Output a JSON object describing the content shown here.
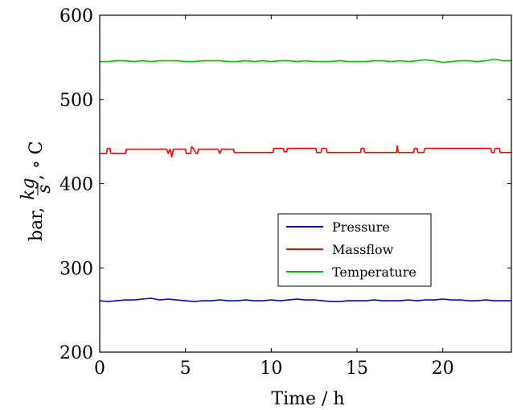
{
  "chart_data": {
    "type": "line",
    "title": "",
    "xlabel": "Time / h",
    "ylabel": {
      "prefix": "bar,",
      "frac_num": "kg",
      "frac_den": "s",
      "suffix": ", ∘ C"
    },
    "xlim": [
      0,
      24
    ],
    "ylim": [
      200,
      600
    ],
    "xticks": [
      0,
      5,
      10,
      15,
      20
    ],
    "yticks": [
      200,
      300,
      400,
      500,
      600
    ],
    "grid": false,
    "legend_position": "center-right",
    "series": [
      {
        "name": "Pressure",
        "color": "#0000ff",
        "x": [
          0,
          0.5,
          1,
          1.5,
          2,
          2.5,
          3,
          3.5,
          4,
          4.5,
          5,
          5.5,
          6,
          6.5,
          7,
          7.5,
          8,
          8.5,
          9,
          9.5,
          10,
          10.5,
          11,
          11.5,
          12,
          12.5,
          13,
          13.5,
          14,
          14.5,
          15,
          15.5,
          16,
          16.5,
          17,
          17.5,
          18,
          18.5,
          19,
          19.5,
          20,
          20.5,
          21,
          21.5,
          22,
          22.5,
          23,
          23.5,
          24
        ],
        "values": [
          261,
          260,
          261,
          262,
          262,
          263,
          264,
          262,
          263,
          262,
          261,
          260,
          261,
          261,
          262,
          261,
          261,
          262,
          261,
          261,
          262,
          261,
          262,
          263,
          262,
          262,
          261,
          260,
          260,
          261,
          261,
          261,
          262,
          261,
          261,
          261,
          262,
          261,
          262,
          262,
          263,
          262,
          262,
          261,
          261,
          262,
          261,
          261,
          261
        ]
      },
      {
        "name": "Massflow",
        "color": "#ff0000",
        "x": [
          0,
          0.4,
          0.45,
          0.6,
          0.65,
          1.5,
          1.55,
          3.9,
          4.0,
          4.1,
          4.2,
          4.3,
          4.4,
          5.0,
          5.05,
          5.3,
          5.35,
          5.5,
          5.6,
          5.7,
          5.75,
          6.9,
          7.0,
          7.1,
          7.8,
          7.85,
          10.1,
          10.15,
          10.7,
          10.75,
          10.9,
          10.95,
          12.6,
          12.65,
          12.9,
          12.95,
          13.2,
          13.25,
          15.2,
          15.25,
          15.4,
          15.45,
          17.3,
          17.35,
          17.4,
          17.45,
          18.3,
          18.35,
          18.5,
          18.55,
          18.9,
          18.95,
          22.8,
          22.85,
          23.0,
          23.05,
          23.3,
          23.35,
          24
        ],
        "values": [
          436,
          436,
          442,
          442,
          436,
          436,
          441,
          441,
          436,
          441,
          432,
          441,
          441,
          441,
          436,
          436,
          444,
          441,
          436,
          436,
          441,
          441,
          436,
          441,
          441,
          437,
          437,
          442,
          442,
          438,
          438,
          442,
          442,
          437,
          437,
          442,
          442,
          437,
          437,
          442,
          442,
          437,
          437,
          445,
          437,
          437,
          437,
          442,
          442,
          437,
          437,
          442,
          442,
          437,
          437,
          442,
          442,
          437,
          437
        ]
      },
      {
        "name": "Temperature",
        "color": "#00c000",
        "x": [
          0,
          0.5,
          1,
          1.5,
          2,
          2.5,
          3,
          3.5,
          4,
          4.5,
          5,
          5.5,
          6,
          6.5,
          7,
          7.5,
          8,
          8.5,
          9,
          9.5,
          10,
          10.5,
          11,
          11.5,
          12,
          12.5,
          13,
          13.5,
          14,
          14.5,
          15,
          15.5,
          16,
          16.5,
          17,
          17.5,
          18,
          18.5,
          19,
          19.5,
          20,
          20.5,
          21,
          21.5,
          22,
          22.5,
          23,
          23.5,
          24
        ],
        "values": [
          545,
          545,
          546,
          546,
          545,
          546,
          545,
          546,
          546,
          546,
          545,
          545,
          546,
          546,
          546,
          545,
          545,
          546,
          545,
          546,
          545,
          546,
          546,
          545,
          546,
          545,
          545,
          545,
          546,
          545,
          545,
          545,
          546,
          546,
          545,
          546,
          545,
          546,
          547,
          546,
          544,
          545,
          546,
          546,
          545,
          546,
          548,
          546,
          546
        ]
      }
    ]
  }
}
